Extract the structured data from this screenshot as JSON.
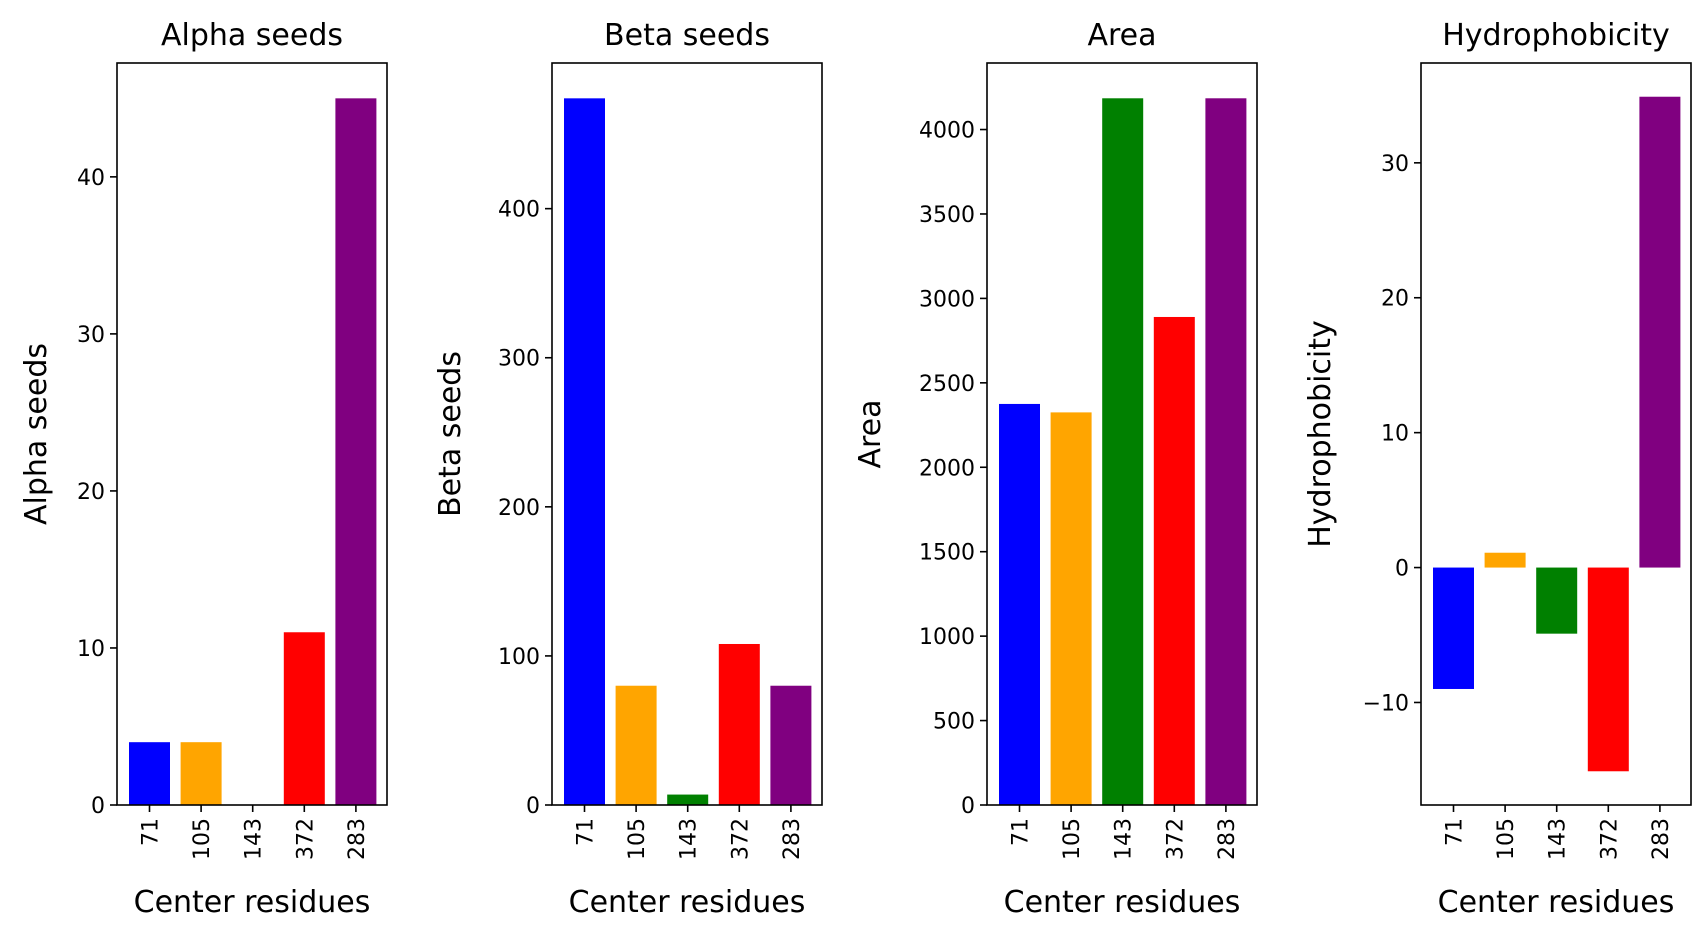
{
  "chart_data": [
    {
      "type": "bar",
      "title": "Alpha seeds",
      "xlabel": "Center residues",
      "ylabel": "Alpha seeds",
      "categories": [
        "71",
        "105",
        "143",
        "372",
        "283"
      ],
      "values": [
        4,
        4,
        0,
        11,
        45
      ],
      "colors": [
        "#0000ff",
        "#ffa500",
        "#008000",
        "#ff0000",
        "#800080"
      ],
      "ylim": [
        0,
        47.25
      ],
      "yticks": [
        0,
        10,
        20,
        30,
        40
      ],
      "grid": false
    },
    {
      "type": "bar",
      "title": "Beta seeds",
      "xlabel": "Center residues",
      "ylabel": "Beta seeds",
      "categories": [
        "71",
        "105",
        "143",
        "372",
        "283"
      ],
      "values": [
        474,
        80,
        7,
        108,
        80
      ],
      "colors": [
        "#0000ff",
        "#ffa500",
        "#008000",
        "#ff0000",
        "#800080"
      ],
      "ylim": [
        0,
        497.7
      ],
      "yticks": [
        0,
        100,
        200,
        300,
        400
      ],
      "grid": false
    },
    {
      "type": "bar",
      "title": "Area",
      "xlabel": "Center residues",
      "ylabel": "Area",
      "categories": [
        "71",
        "105",
        "143",
        "372",
        "283"
      ],
      "values": [
        2375,
        2325,
        4185,
        2890,
        4185
      ],
      "colors": [
        "#0000ff",
        "#ffa500",
        "#008000",
        "#ff0000",
        "#800080"
      ],
      "ylim": [
        0,
        4394
      ],
      "yticks": [
        0,
        500,
        1000,
        1500,
        2000,
        2500,
        3000,
        3500,
        4000
      ],
      "grid": false
    },
    {
      "type": "bar",
      "title": "Hydrophobicity",
      "xlabel": "Center residues",
      "ylabel": "Hydrophobicity",
      "categories": [
        "71",
        "105",
        "143",
        "372",
        "283"
      ],
      "values": [
        -9,
        1.1,
        -4.9,
        -15.1,
        34.9
      ],
      "colors": [
        "#0000ff",
        "#ffa500",
        "#008000",
        "#ff0000",
        "#800080"
      ],
      "ylim": [
        -17.6,
        37.4
      ],
      "yticks": [
        -10,
        0,
        10,
        20,
        30
      ],
      "grid": false
    }
  ]
}
